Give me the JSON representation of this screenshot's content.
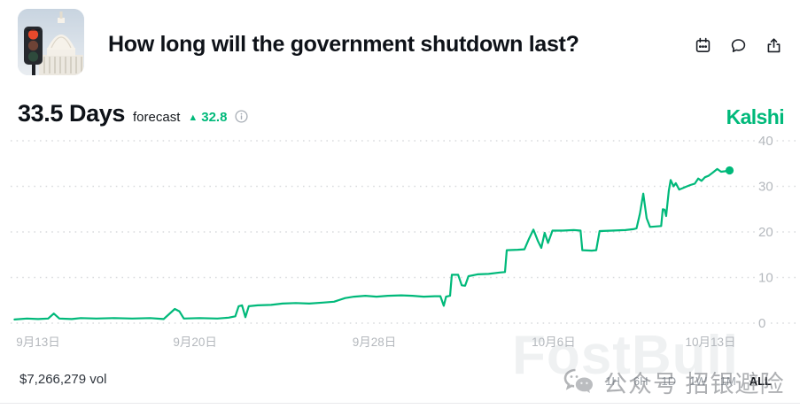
{
  "header": {
    "title": "How long will the government shutdown last?",
    "action_icons": [
      "calendar",
      "comment",
      "share"
    ]
  },
  "forecast": {
    "value": "33.5 Days",
    "label": "forecast",
    "change_direction": "up",
    "change_arrow": "▲",
    "change_value": "32.8"
  },
  "brand": {
    "name": "Kalshi"
  },
  "chart_data": {
    "type": "line",
    "title": "",
    "xlabel": "",
    "ylabel": "",
    "ylim": [
      0,
      42
    ],
    "y_ticks": [
      0,
      10,
      20,
      30,
      40
    ],
    "x_ticks": [
      {
        "label": "9月13日",
        "day": 0
      },
      {
        "label": "9月20日",
        "day": 7
      },
      {
        "label": "9月28日",
        "day": 15
      },
      {
        "label": "10月6日",
        "day": 23
      },
      {
        "label": "10月13日",
        "day": 30
      }
    ],
    "grid": "dotted-horizontal",
    "legend": "none",
    "end_dot": true,
    "series": [
      {
        "name": "forecast_days",
        "points": [
          [
            -1.05,
            0.8
          ],
          [
            -0.5,
            1.0
          ],
          [
            0.0,
            0.9
          ],
          [
            0.45,
            1.0
          ],
          [
            0.7,
            2.1
          ],
          [
            0.95,
            1.0
          ],
          [
            1.5,
            0.9
          ],
          [
            1.9,
            1.1
          ],
          [
            2.6,
            1.0
          ],
          [
            3.4,
            1.1
          ],
          [
            4.2,
            1.0
          ],
          [
            5.0,
            1.1
          ],
          [
            5.6,
            0.9
          ],
          [
            6.1,
            3.1
          ],
          [
            6.3,
            2.6
          ],
          [
            6.5,
            1.0
          ],
          [
            7.2,
            1.1
          ],
          [
            8.0,
            1.0
          ],
          [
            8.5,
            1.2
          ],
          [
            8.8,
            1.5
          ],
          [
            8.95,
            3.7
          ],
          [
            9.1,
            3.9
          ],
          [
            9.25,
            1.3
          ],
          [
            9.4,
            3.7
          ],
          [
            9.8,
            3.9
          ],
          [
            10.4,
            4.0
          ],
          [
            10.9,
            4.3
          ],
          [
            11.5,
            4.4
          ],
          [
            12.1,
            4.3
          ],
          [
            12.7,
            4.5
          ],
          [
            13.2,
            4.7
          ],
          [
            13.7,
            5.5
          ],
          [
            14.1,
            5.8
          ],
          [
            14.6,
            6.0
          ],
          [
            15.1,
            5.8
          ],
          [
            15.6,
            6.0
          ],
          [
            16.2,
            6.1
          ],
          [
            16.7,
            6.0
          ],
          [
            17.2,
            5.8
          ],
          [
            17.7,
            5.9
          ],
          [
            17.95,
            5.9
          ],
          [
            18.1,
            3.8
          ],
          [
            18.2,
            5.8
          ],
          [
            18.38,
            6.0
          ],
          [
            18.46,
            10.6
          ],
          [
            18.74,
            10.6
          ],
          [
            18.9,
            8.3
          ],
          [
            19.05,
            8.2
          ],
          [
            19.2,
            10.3
          ],
          [
            19.6,
            10.7
          ],
          [
            20.1,
            10.8
          ],
          [
            20.6,
            11.1
          ],
          [
            20.83,
            11.2
          ],
          [
            20.91,
            16.0
          ],
          [
            21.4,
            16.1
          ],
          [
            21.7,
            16.2
          ],
          [
            21.9,
            18.5
          ],
          [
            22.1,
            20.5
          ],
          [
            22.3,
            18.0
          ],
          [
            22.45,
            16.5
          ],
          [
            22.6,
            19.8
          ],
          [
            22.75,
            17.6
          ],
          [
            22.95,
            20.3
          ],
          [
            23.4,
            20.3
          ],
          [
            23.9,
            20.4
          ],
          [
            24.2,
            20.3
          ],
          [
            24.28,
            16.0
          ],
          [
            24.7,
            15.9
          ],
          [
            24.9,
            16.0
          ],
          [
            25.05,
            20.2
          ],
          [
            25.6,
            20.3
          ],
          [
            26.2,
            20.4
          ],
          [
            26.55,
            20.6
          ],
          [
            26.7,
            20.8
          ],
          [
            26.85,
            24.0
          ],
          [
            27.0,
            28.4
          ],
          [
            27.15,
            23.0
          ],
          [
            27.3,
            21.1
          ],
          [
            27.55,
            21.2
          ],
          [
            27.8,
            21.3
          ],
          [
            27.87,
            25.0
          ],
          [
            27.95,
            24.9
          ],
          [
            28.02,
            23.5
          ],
          [
            28.14,
            29.0
          ],
          [
            28.22,
            31.4
          ],
          [
            28.35,
            30.0
          ],
          [
            28.45,
            30.7
          ],
          [
            28.6,
            29.3
          ],
          [
            28.75,
            29.6
          ],
          [
            28.9,
            29.9
          ],
          [
            29.1,
            30.3
          ],
          [
            29.3,
            30.6
          ],
          [
            29.45,
            31.7
          ],
          [
            29.6,
            31.2
          ],
          [
            29.75,
            32.0
          ],
          [
            29.9,
            32.3
          ],
          [
            30.1,
            33.0
          ],
          [
            30.3,
            33.8
          ],
          [
            30.47,
            33.2
          ],
          [
            30.63,
            33.3
          ],
          [
            30.85,
            33.5
          ]
        ]
      }
    ]
  },
  "footer": {
    "volume": "$7,266,279 vol",
    "time_ranges": [
      "1H",
      "6H",
      "1D",
      "1W",
      "1M",
      "ALL"
    ],
    "active_range": "ALL"
  },
  "watermarks": {
    "wechat_text": "公众号 招银避险",
    "large_text": "FostBull"
  },
  "colors": {
    "accent_green": "#00b97a",
    "grid": "#d9dbde",
    "tick_label": "#b4b8bd"
  }
}
